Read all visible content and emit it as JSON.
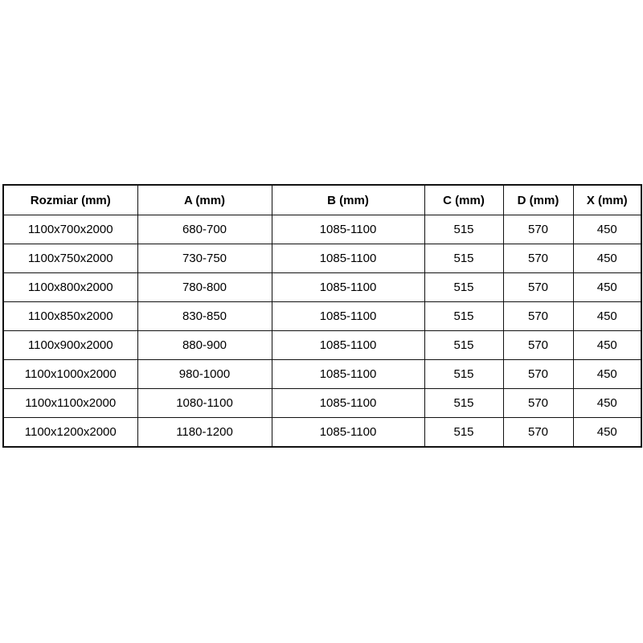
{
  "page": {
    "background_color": "#ffffff",
    "text_color": "#000000",
    "border_color": "#111111"
  },
  "table": {
    "columns": [
      "Rozmiar (mm)",
      "A (mm)",
      "B (mm)",
      "C (mm)",
      "D (mm)",
      "X (mm)"
    ],
    "rows": [
      [
        "1100x700x2000",
        "680-700",
        "1085-1100",
        "515",
        "570",
        "450"
      ],
      [
        "1100x750x2000",
        "730-750",
        "1085-1100",
        "515",
        "570",
        "450"
      ],
      [
        "1100x800x2000",
        "780-800",
        "1085-1100",
        "515",
        "570",
        "450"
      ],
      [
        "1100x850x2000",
        "830-850",
        "1085-1100",
        "515",
        "570",
        "450"
      ],
      [
        "1100x900x2000",
        "880-900",
        "1085-1100",
        "515",
        "570",
        "450"
      ],
      [
        "1100x1000x2000",
        "980-1000",
        "1085-1100",
        "515",
        "570",
        "450"
      ],
      [
        "1100x1100x2000",
        "1080-1100",
        "1085-1100",
        "515",
        "570",
        "450"
      ],
      [
        "1100x1200x2000",
        "1180-1200",
        "1085-1100",
        "515",
        "570",
        "450"
      ]
    ]
  }
}
